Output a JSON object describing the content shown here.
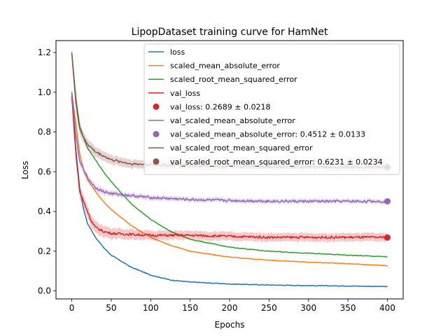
{
  "chart_data": {
    "type": "line",
    "title": "LipopDataset training curve for HamNet",
    "xlabel": "Epochs",
    "ylabel": "Loss",
    "xlim": [
      -20,
      420
    ],
    "ylim": [
      -0.04,
      1.26
    ],
    "xticks": [
      0,
      50,
      100,
      150,
      200,
      250,
      300,
      350,
      400
    ],
    "yticks": [
      0.0,
      0.2,
      0.4,
      0.6,
      0.8,
      1.0,
      1.2
    ],
    "grid": false,
    "legend_position": "top-right",
    "series": [
      {
        "name": "loss",
        "color": "#1f77b4",
        "band": false,
        "x": [
          0,
          5,
          10,
          15,
          20,
          30,
          40,
          50,
          75,
          100,
          125,
          150,
          200,
          250,
          300,
          350,
          400
        ],
        "y": [
          1.0,
          0.72,
          0.52,
          0.41,
          0.34,
          0.27,
          0.22,
          0.18,
          0.12,
          0.08,
          0.055,
          0.045,
          0.035,
          0.03,
          0.027,
          0.025,
          0.022
        ]
      },
      {
        "name": "scaled_mean_absolute_error",
        "color": "#ff7f0e",
        "band": false,
        "x": [
          0,
          5,
          10,
          15,
          20,
          30,
          40,
          50,
          75,
          100,
          125,
          150,
          200,
          250,
          300,
          350,
          400
        ],
        "y": [
          1.0,
          0.85,
          0.69,
          0.61,
          0.56,
          0.5,
          0.45,
          0.41,
          0.33,
          0.27,
          0.23,
          0.2,
          0.17,
          0.155,
          0.145,
          0.137,
          0.127
        ]
      },
      {
        "name": "scaled_root_mean_squared_error",
        "color": "#2ca02c",
        "band": false,
        "x": [
          0,
          5,
          10,
          15,
          20,
          30,
          40,
          50,
          75,
          100,
          125,
          150,
          200,
          250,
          300,
          350,
          400
        ],
        "y": [
          1.2,
          0.98,
          0.83,
          0.77,
          0.72,
          0.66,
          0.6,
          0.55,
          0.44,
          0.36,
          0.3,
          0.26,
          0.22,
          0.2,
          0.19,
          0.18,
          0.172
        ]
      },
      {
        "name": "val_loss",
        "color": "#d62728",
        "band": true,
        "band_width": 0.035,
        "x": [
          0,
          5,
          10,
          15,
          20,
          25,
          30,
          40,
          50,
          75,
          100,
          150,
          200,
          250,
          300,
          350,
          400
        ],
        "y": [
          0.98,
          0.7,
          0.5,
          0.45,
          0.4,
          0.35,
          0.32,
          0.3,
          0.29,
          0.285,
          0.28,
          0.28,
          0.275,
          0.27,
          0.27,
          0.27,
          0.27
        ]
      },
      {
        "name": "val_scaled_mean_absolute_error",
        "color": "#9467bd",
        "band": true,
        "band_width": 0.018,
        "x": [
          0,
          5,
          10,
          15,
          20,
          30,
          40,
          50,
          75,
          100,
          150,
          200,
          250,
          300,
          350,
          400
        ],
        "y": [
          1.0,
          0.79,
          0.65,
          0.61,
          0.57,
          0.52,
          0.5,
          0.49,
          0.48,
          0.47,
          0.46,
          0.455,
          0.452,
          0.451,
          0.451,
          0.451
        ]
      },
      {
        "name": "val_scaled_root_mean_squared_error",
        "color": "#8c564b",
        "band": true,
        "band_width": 0.03,
        "x": [
          0,
          5,
          10,
          15,
          20,
          30,
          40,
          50,
          75,
          100,
          150,
          200,
          250,
          300,
          350,
          400
        ],
        "y": [
          1.2,
          0.95,
          0.82,
          0.77,
          0.74,
          0.7,
          0.68,
          0.66,
          0.64,
          0.635,
          0.63,
          0.628,
          0.625,
          0.624,
          0.623,
          0.623
        ]
      }
    ],
    "final_points": [
      {
        "label": "val_loss: 0.2689 ± 0.0218",
        "x": 400,
        "y": 0.2689,
        "color": "#d62728"
      },
      {
        "label": "val_scaled_mean_absolute_error: 0.4512 ± 0.0133",
        "x": 400,
        "y": 0.4512,
        "color": "#9467bd"
      },
      {
        "label": "val_scaled_root_mean_squared_error: 0.6231 ± 0.0234",
        "x": 400,
        "y": 0.6231,
        "color": "#8c564b"
      }
    ],
    "legend_entries": [
      {
        "label": "loss",
        "kind": "line",
        "color": "#1f77b4"
      },
      {
        "label": "scaled_mean_absolute_error",
        "kind": "line",
        "color": "#ff7f0e"
      },
      {
        "label": "scaled_root_mean_squared_error",
        "kind": "line",
        "color": "#2ca02c"
      },
      {
        "label": "val_loss",
        "kind": "line",
        "color": "#d62728"
      },
      {
        "label": "val_loss: 0.2689 ± 0.0218",
        "kind": "marker",
        "color": "#d62728"
      },
      {
        "label": "val_scaled_mean_absolute_error",
        "kind": "line",
        "color": "#9467bd"
      },
      {
        "label": "val_scaled_mean_absolute_error: 0.4512 ± 0.0133",
        "kind": "marker",
        "color": "#9467bd"
      },
      {
        "label": "val_scaled_root_mean_squared_error",
        "kind": "line",
        "color": "#8c564b"
      },
      {
        "label": "val_scaled_root_mean_squared_error: 0.6231 ± 0.0234",
        "kind": "marker",
        "color": "#8c564b"
      }
    ]
  }
}
